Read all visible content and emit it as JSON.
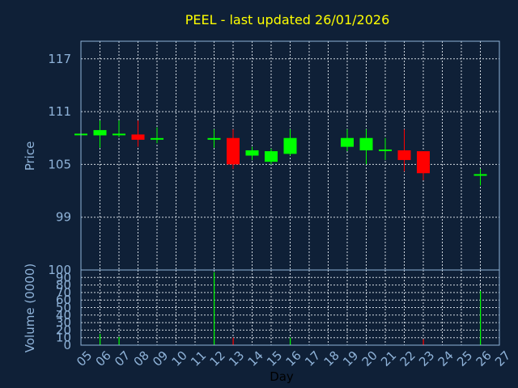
{
  "chart_data": [
    {
      "type": "candlestick",
      "title": "PEEL - last updated 26/01/2026",
      "ylabel": "Price",
      "yticks": [
        99,
        105,
        111,
        117
      ],
      "ylim": [
        93,
        119
      ],
      "grid": true,
      "up_color": "#00ff00",
      "down_color": "#ff0000",
      "candles": [
        {
          "day": "05",
          "open": 108.4,
          "high": 108.7,
          "low": 108.2,
          "close": 108.4
        },
        {
          "day": "06",
          "open": 108.3,
          "high": 110.0,
          "low": 106.9,
          "close": 108.9
        },
        {
          "day": "07",
          "open": 108.4,
          "high": 110.0,
          "low": 108.1,
          "close": 108.4
        },
        {
          "day": "08",
          "open": 108.4,
          "high": 110.0,
          "low": 107.0,
          "close": 107.8
        },
        {
          "day": "09",
          "open": 107.9,
          "high": 109.2,
          "low": 107.4,
          "close": 107.9
        },
        {
          "day": "12",
          "open": 107.9,
          "high": 109.0,
          "low": 106.9,
          "close": 107.9
        },
        {
          "day": "13",
          "open": 108.0,
          "high": 109.0,
          "low": 104.5,
          "close": 105.0
        },
        {
          "day": "14",
          "open": 106.0,
          "high": 107.0,
          "low": 105.5,
          "close": 106.6
        },
        {
          "day": "15",
          "open": 105.3,
          "high": 106.8,
          "low": 105.0,
          "close": 106.5
        },
        {
          "day": "16",
          "open": 106.2,
          "high": 109.0,
          "low": 106.0,
          "close": 108.0
        },
        {
          "day": "19",
          "open": 107.0,
          "high": 109.0,
          "low": 106.5,
          "close": 108.0
        },
        {
          "day": "20",
          "open": 106.6,
          "high": 109.0,
          "low": 105.0,
          "close": 108.0
        },
        {
          "day": "21",
          "open": 106.6,
          "high": 108.0,
          "low": 105.5,
          "close": 106.6
        },
        {
          "day": "22",
          "open": 106.6,
          "high": 109.0,
          "low": 104.2,
          "close": 105.5
        },
        {
          "day": "23",
          "open": 106.5,
          "high": 106.5,
          "low": 103.2,
          "close": 104.0
        },
        {
          "day": "26",
          "open": 103.8,
          "high": 104.5,
          "low": 102.6,
          "close": 103.8
        }
      ]
    },
    {
      "type": "bar",
      "ylabel": "Volume (0000)",
      "xlabel": "Day",
      "ylim": [
        0,
        100
      ],
      "yticks": [
        0,
        10,
        20,
        30,
        40,
        50,
        60,
        70,
        80,
        90,
        100
      ],
      "ytick_labels": [
        "0",
        "10",
        "20",
        "30",
        "40",
        "50",
        "60",
        "70",
        "80",
        "90",
        "100"
      ],
      "categories": [
        "05",
        "06",
        "07",
        "08",
        "09",
        "10",
        "11",
        "12",
        "13",
        "14",
        "15",
        "16",
        "17",
        "18",
        "19",
        "20",
        "21",
        "22",
        "23",
        "24",
        "25",
        "26",
        "27"
      ],
      "bars": [
        {
          "day": "06",
          "value": 15,
          "color": "#00ff00"
        },
        {
          "day": "07",
          "value": 11,
          "color": "#00ff00"
        },
        {
          "day": "12",
          "value": 97,
          "color": "#00ff00"
        },
        {
          "day": "13",
          "value": 10,
          "color": "#ff0000"
        },
        {
          "day": "16",
          "value": 10,
          "color": "#00ff00"
        },
        {
          "day": "23",
          "value": 8,
          "color": "#ff0000"
        },
        {
          "day": "26",
          "value": 72,
          "color": "#00ff00"
        }
      ]
    }
  ]
}
